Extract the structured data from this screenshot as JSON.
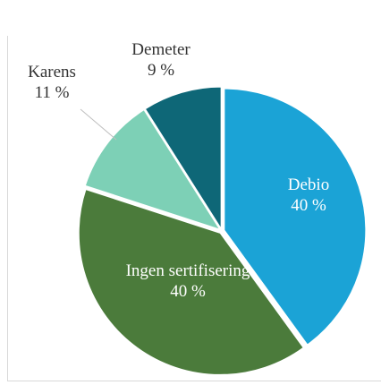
{
  "chart_data": {
    "type": "pie",
    "categories": [
      "Debio",
      "Ingen sertifisering",
      "Karens",
      "Demeter"
    ],
    "values": [
      40,
      40,
      11,
      9
    ],
    "value_labels": [
      "40 %",
      "40 %",
      "11 %",
      "9 %"
    ],
    "colors": [
      "#1ba3d6",
      "#4b7b3b",
      "#7dd0b6",
      "#0e6777"
    ]
  }
}
